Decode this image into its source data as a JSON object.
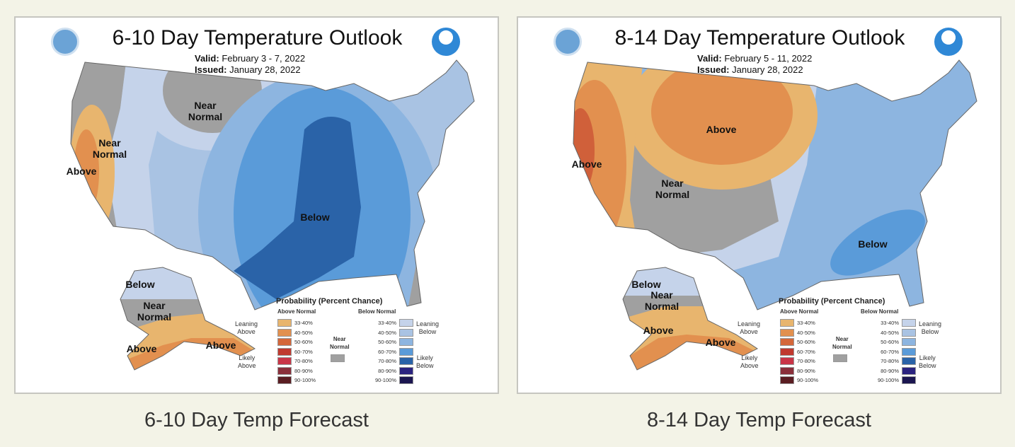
{
  "maps": [
    {
      "title": "6-10 Day Temperature Outlook",
      "valid_label": "Valid:",
      "valid": "February 3 - 7, 2022",
      "issued_label": "Issued:",
      "issued": "January 28, 2022",
      "labels": [
        "Near\nNormal",
        "Near\nNormal",
        "Above",
        "Below",
        "Below",
        "Near\nNormal",
        "Above",
        "Above"
      ],
      "caption": "6-10 Day Temp Forecast"
    },
    {
      "title": "8-14 Day Temperature Outlook",
      "valid_label": "Valid:",
      "valid": "February 5 - 11, 2022",
      "issued_label": "Issued:",
      "issued": "January 28, 2022",
      "labels": [
        "Above",
        "Above",
        "Near\nNormal",
        "Below",
        "Below",
        "Near\nNormal",
        "Above",
        "Above"
      ],
      "caption": "8-14 Day Temp Forecast"
    }
  ],
  "legend": {
    "title": "Probability (Percent Chance)",
    "above_header": "Above Normal",
    "below_header": "Below Normal",
    "leaning_above": "Leaning\nAbove",
    "likely_above": "Likely\nAbove",
    "leaning_below": "Leaning\nBelow",
    "likely_below": "Likely\nBelow",
    "near_normal": "Near\nNormal",
    "ranges": [
      "33-40%",
      "40-50%",
      "50-60%",
      "60-70%",
      "70-80%",
      "80-90%",
      "90-100%"
    ],
    "above_colors": [
      "#e8b56e",
      "#e2904f",
      "#d4673a",
      "#c0392f",
      "#c93547",
      "#8a2f3a",
      "#5a1d22"
    ],
    "below_colors": [
      "#c5d3ea",
      "#a9c3e3",
      "#8db5e0",
      "#5a9bd9",
      "#2a63a8",
      "#2b2380",
      "#1b1650"
    ],
    "near_color": "#a0a0a0"
  }
}
